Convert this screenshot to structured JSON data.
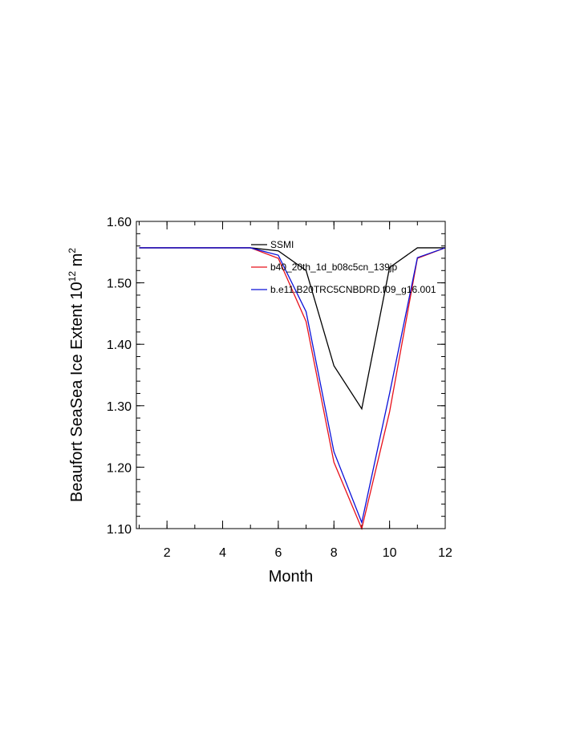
{
  "chart_data": {
    "type": "line",
    "title": "",
    "xlabel": "Month",
    "ylabel_main": "Beaufort SeaSea Ice Extent 10",
    "ylabel_sup1": "12",
    "ylabel_unit": " m",
    "ylabel_sup2": "2",
    "xlim": [
      0.9,
      12
    ],
    "ylim": [
      1.1,
      1.6
    ],
    "xticks": [
      2,
      4,
      6,
      8,
      10,
      12
    ],
    "xtick_labels": [
      "2",
      "4",
      "6",
      "8",
      "10",
      "12"
    ],
    "yticks": [
      1.1,
      1.2,
      1.3,
      1.4,
      1.5,
      1.6
    ],
    "ytick_labels": [
      "1.10",
      "1.20",
      "1.30",
      "1.40",
      "1.50",
      "1.60"
    ],
    "grid": false,
    "legend_position": "top-right",
    "x": [
      1,
      2,
      3,
      4,
      5,
      6,
      7,
      8,
      9,
      10,
      11,
      12
    ],
    "series": [
      {
        "name": "SSMI",
        "color": "#000000",
        "values": [
          1.557,
          1.557,
          1.557,
          1.557,
          1.557,
          1.552,
          1.52,
          1.365,
          1.295,
          1.525,
          1.557,
          1.557
        ]
      },
      {
        "name": "b40_20th_1d_b08c5cn_139jp",
        "color": "#e8101a",
        "values": [
          1.557,
          1.557,
          1.557,
          1.557,
          1.557,
          1.54,
          1.437,
          1.208,
          1.1,
          1.29,
          1.54,
          1.557
        ]
      },
      {
        "name": "b.e11.B20TRC5CNBDRD.f09_g16.001",
        "color": "#0a10d8",
        "values": [
          1.557,
          1.557,
          1.557,
          1.557,
          1.557,
          1.545,
          1.453,
          1.225,
          1.11,
          1.32,
          1.541,
          1.557
        ]
      }
    ]
  }
}
